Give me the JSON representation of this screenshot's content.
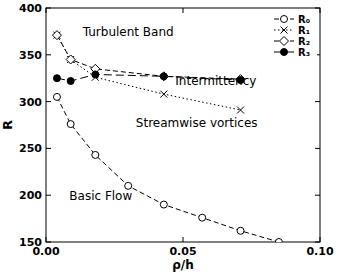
{
  "chart_data": {
    "type": "line",
    "x_label": "ρ/h",
    "y_label": "R",
    "xlim": [
      0,
      0.1
    ],
    "ylim": [
      150,
      400
    ],
    "xticks": [
      {
        "value": 0,
        "label": "0.00"
      },
      {
        "value": 0.05,
        "label": "0.05"
      },
      {
        "value": 0.1,
        "label": "0.10"
      }
    ],
    "yticks": [
      150,
      200,
      250,
      300,
      350,
      400
    ],
    "grid": false,
    "legend": "top-right",
    "annotations": [
      "Turbulent Band",
      "Intermittency",
      "Streamwise vortices",
      "Basic Flow"
    ],
    "series": [
      {
        "name": "R₀",
        "color": "#000000",
        "marker": "circle-open",
        "line_style": "dashed",
        "x": [
          0.004,
          0.009,
          0.018,
          0.03,
          0.043,
          0.057,
          0.071,
          0.085
        ],
        "values": [
          305,
          276,
          243,
          210,
          190,
          176,
          162,
          150
        ]
      },
      {
        "name": "R₁",
        "color": "#000000",
        "marker": "x",
        "line_style": "dotted",
        "x": [
          0.004,
          0.009,
          0.018,
          0.043,
          0.071
        ],
        "values": [
          371,
          345,
          326,
          308,
          291
        ]
      },
      {
        "name": "R₂",
        "color": "#000000",
        "marker": "diamond-open",
        "line_style": "dashed",
        "x": [
          0.004,
          0.009,
          0.018,
          0.043,
          0.071
        ],
        "values": [
          371,
          345,
          335,
          327,
          324
        ]
      },
      {
        "name": "R₃",
        "color": "#000000",
        "marker": "circle-filled",
        "line_style": "longdash",
        "x": [
          0.004,
          0.009,
          0.018,
          0.043,
          0.071
        ],
        "values": [
          325,
          322,
          329,
          327,
          323
        ]
      }
    ]
  }
}
